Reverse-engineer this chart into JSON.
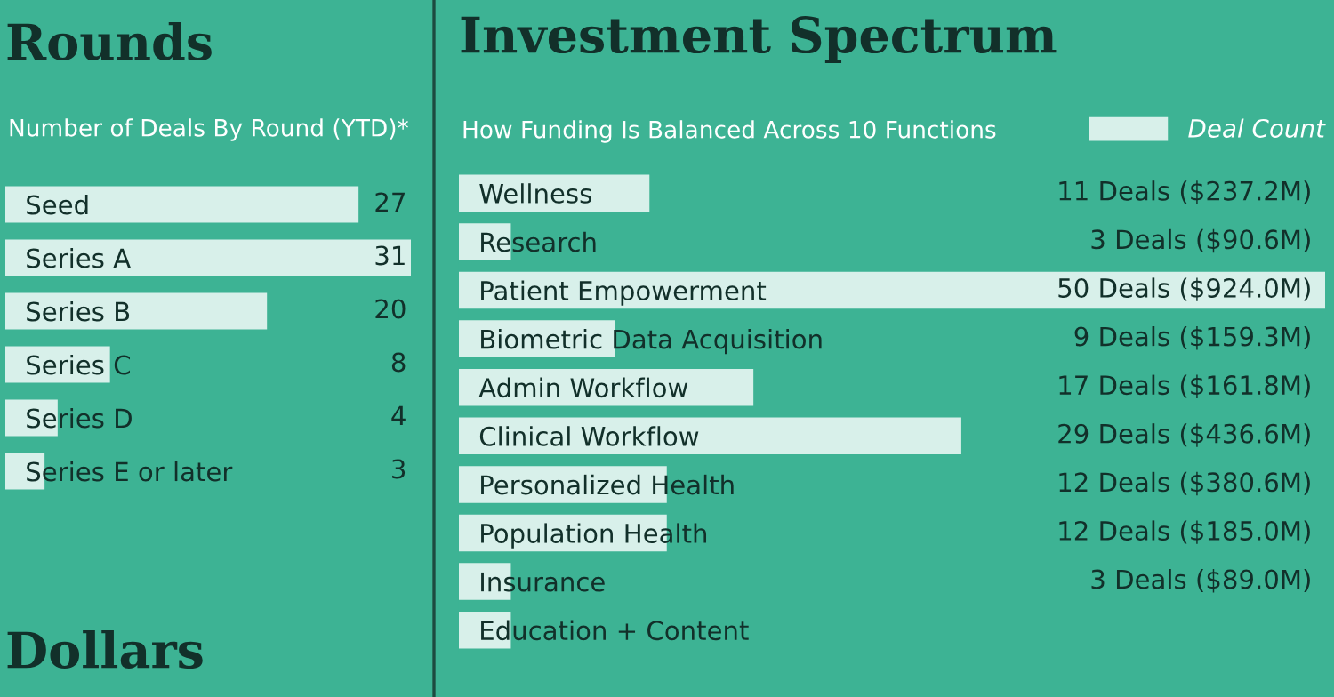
{
  "chart_data": [
    {
      "type": "bar",
      "orientation": "horizontal",
      "title": "Rounds",
      "subtitle": "Number of Deals By Round (YTD)*",
      "categories": [
        "Seed",
        "Series A",
        "Series B",
        "Series C",
        "Series D",
        "Series E or later"
      ],
      "values": [
        27,
        31,
        20,
        8,
        4,
        3
      ],
      "color": "#d8f0ea",
      "data_labels": true,
      "grid": false,
      "legend": false,
      "annotations": [
        "Dollars"
      ]
    },
    {
      "type": "bar",
      "orientation": "horizontal",
      "title": "Investment Spectrum",
      "subtitle": "How Funding Is Balanced Across 10 Functions",
      "categories": [
        "Wellness",
        "Research",
        "Patient Empowerment",
        "Biometric Data Acquisition",
        "Admin Workflow",
        "Clinical Workflow",
        "Personalized Health",
        "Population Health",
        "Insurance",
        "Education + Content"
      ],
      "series": [
        {
          "name": "Deal Count",
          "color": "#d8f0ea",
          "values": [
            11,
            3,
            50,
            9,
            17,
            29,
            12,
            12,
            3,
            3
          ],
          "value_labels": [
            "11 Deals ($237.2M)",
            "3 Deals ($90.6M)",
            "50 Deals ($924.0M)",
            "9 Deals ($159.3M)",
            "17 Deals ($161.8M)",
            "29 Deals ($436.6M)",
            "12 Deals ($380.6M)",
            "12 Deals ($185.0M)",
            "3 Deals ($89.0M)",
            null
          ]
        }
      ],
      "grid": false,
      "legend": "top right"
    }
  ]
}
